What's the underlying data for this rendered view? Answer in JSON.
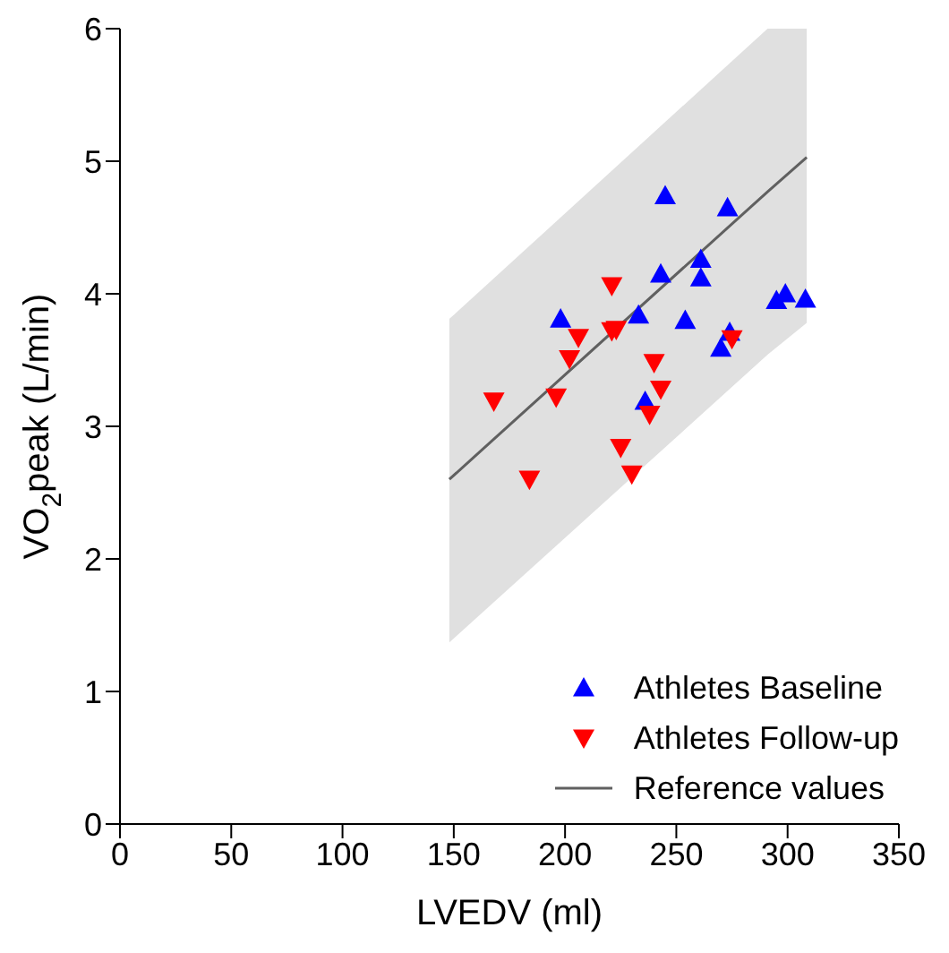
{
  "chart_data": {
    "type": "scatter",
    "xlabel": "LVEDV (ml)",
    "ylabel": "VO$_{2}$peak (L/min)",
    "xlim": [
      0,
      350
    ],
    "xticks": [
      0,
      50,
      100,
      150,
      200,
      250,
      300,
      350
    ],
    "ylim": [
      0,
      6
    ],
    "yticks": [
      0,
      1,
      2,
      3,
      4,
      5,
      6
    ],
    "grid": false,
    "legend": "bottom right",
    "series": [
      {
        "name": "Athletes Baseline",
        "marker": "triangle",
        "color": "#0000ff",
        "x": [
          245,
          273,
          261,
          243,
          261,
          198,
          233,
          254,
          295,
          299,
          308,
          270,
          274,
          236
        ],
        "values": [
          4.74,
          4.65,
          4.26,
          4.15,
          4.12,
          3.81,
          3.84,
          3.8,
          3.95,
          4.0,
          3.96,
          3.59,
          3.71,
          3.19
        ]
      },
      {
        "name": "Athletes Follow-up",
        "marker": "triangle-down",
        "color": "#ff0000",
        "x": [
          221,
          221,
          223,
          206,
          202,
          240,
          243,
          196,
          168,
          238,
          225,
          230,
          184,
          275
        ],
        "values": [
          4.06,
          3.72,
          3.73,
          3.67,
          3.51,
          3.48,
          3.28,
          3.22,
          3.19,
          3.09,
          2.84,
          2.64,
          2.6,
          3.66
        ]
      },
      {
        "name": "Reference values",
        "type": "line",
        "marker": "none",
        "color": "#606060",
        "x": [
          148,
          291,
          308.6
        ],
        "values": [
          2.6,
          4.77,
          5.03
        ],
        "lower": [
          1.37,
          3.54,
          3.78
        ],
        "upper": [
          3.81,
          6,
          6
        ]
      }
    ]
  }
}
